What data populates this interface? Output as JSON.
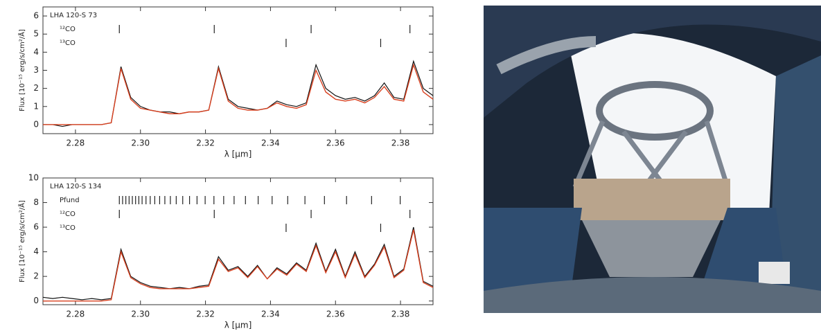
{
  "chart_data": [
    {
      "type": "line",
      "title": "LHA 120-S 73",
      "x_label": "λ [μm]",
      "y_label": "Flux [10⁻¹⁵ erg/s/cm²/Å]",
      "x": [
        2.27,
        2.273,
        2.276,
        2.279,
        2.282,
        2.285,
        2.288,
        2.291,
        2.294,
        2.297,
        2.3,
        2.303,
        2.306,
        2.309,
        2.312,
        2.315,
        2.318,
        2.321,
        2.324,
        2.327,
        2.33,
        2.333,
        2.336,
        2.339,
        2.342,
        2.345,
        2.348,
        2.351,
        2.354,
        2.357,
        2.36,
        2.363,
        2.366,
        2.369,
        2.372,
        2.375,
        2.378,
        2.381,
        2.384,
        2.387,
        2.39
      ],
      "series": [
        {
          "color": "#111111",
          "values": [
            0,
            0,
            -0.1,
            0,
            0,
            0,
            0,
            0.1,
            3.2,
            1.5,
            1.0,
            0.8,
            0.7,
            0.7,
            0.6,
            0.7,
            0.7,
            0.8,
            3.2,
            1.4,
            1.0,
            0.9,
            0.8,
            0.9,
            1.3,
            1.1,
            1.0,
            1.2,
            3.3,
            2.0,
            1.6,
            1.4,
            1.5,
            1.3,
            1.6,
            2.3,
            1.5,
            1.4,
            3.5,
            2.0,
            1.6
          ]
        },
        {
          "color": "#d8401f",
          "values": [
            0,
            0,
            0,
            0,
            0,
            0,
            0,
            0.1,
            3.1,
            1.4,
            0.9,
            0.8,
            0.7,
            0.6,
            0.6,
            0.7,
            0.7,
            0.8,
            3.1,
            1.3,
            0.9,
            0.8,
            0.8,
            0.9,
            1.2,
            1.0,
            0.9,
            1.1,
            3.0,
            1.8,
            1.4,
            1.3,
            1.4,
            1.2,
            1.5,
            2.1,
            1.4,
            1.3,
            3.3,
            1.8,
            1.4
          ]
        }
      ],
      "line_markers": [
        {
          "label": "¹²CO",
          "x": [
            2.2935,
            2.3227,
            2.3525,
            2.3829
          ]
        },
        {
          "label": "¹³CO",
          "x": [
            2.3448,
            2.3739
          ]
        }
      ],
      "xlim": [
        2.27,
        2.39
      ],
      "xticks": [
        2.28,
        {
          "value": 2.3,
          "label": "2.30"
        },
        2.32,
        2.34,
        2.36,
        2.38
      ],
      "ylim": [
        -0.5,
        6.5
      ],
      "yticks": [
        0,
        1,
        2,
        3,
        4,
        5,
        6
      ]
    },
    {
      "type": "line",
      "title": "LHA 120-S 134",
      "x_label": "λ [μm]",
      "y_label": "Flux [10⁻¹⁵ erg/s/cm²/Å]",
      "x": [
        2.27,
        2.273,
        2.276,
        2.279,
        2.282,
        2.285,
        2.288,
        2.291,
        2.294,
        2.297,
        2.3,
        2.303,
        2.306,
        2.309,
        2.312,
        2.315,
        2.318,
        2.321,
        2.324,
        2.327,
        2.33,
        2.333,
        2.336,
        2.339,
        2.342,
        2.345,
        2.348,
        2.351,
        2.354,
        2.357,
        2.36,
        2.363,
        2.366,
        2.369,
        2.372,
        2.375,
        2.378,
        2.381,
        2.384,
        2.387,
        2.39
      ],
      "series": [
        {
          "color": "#111111",
          "values": [
            0.3,
            0.2,
            0.3,
            0.2,
            0.1,
            0.2,
            0.1,
            0.2,
            4.2,
            2.0,
            1.5,
            1.2,
            1.1,
            1.0,
            1.1,
            1.0,
            1.2,
            1.3,
            3.6,
            2.5,
            2.8,
            2.0,
            2.9,
            1.8,
            2.7,
            2.2,
            3.1,
            2.5,
            4.7,
            2.4,
            4.2,
            2.0,
            4.0,
            2.0,
            3.0,
            4.6,
            2.0,
            2.6,
            6.0,
            1.6,
            1.2
          ]
        },
        {
          "color": "#d8401f",
          "values": [
            0,
            0,
            0,
            0,
            0,
            0,
            0,
            0.1,
            4.0,
            1.9,
            1.4,
            1.1,
            1.0,
            1.0,
            1.0,
            1.0,
            1.1,
            1.2,
            3.4,
            2.4,
            2.7,
            1.9,
            2.8,
            1.8,
            2.6,
            2.1,
            3.0,
            2.4,
            4.5,
            2.3,
            4.0,
            1.9,
            3.8,
            1.9,
            2.9,
            4.4,
            1.9,
            2.5,
            5.8,
            1.5,
            1.1
          ]
        }
      ],
      "line_markers": [
        {
          "label": "Pfund",
          "x": [
            2.2935,
            2.2945,
            2.2955,
            2.2965,
            2.2975,
            2.2985,
            2.2995,
            2.3005,
            2.3017,
            2.303,
            2.3044,
            2.3059,
            2.3075,
            2.3092,
            2.311,
            2.313,
            2.3151,
            2.3174,
            2.3199,
            2.3226,
            2.3256,
            2.3288,
            2.3323,
            2.3362,
            2.3405,
            2.3453,
            2.3506,
            2.3566,
            2.3634,
            2.3711,
            2.3799
          ]
        },
        {
          "label": "¹²CO",
          "x": [
            2.2935,
            2.3227,
            2.3525,
            2.3829
          ]
        },
        {
          "label": "¹³CO",
          "x": [
            2.3448,
            2.3739
          ]
        }
      ],
      "xlim": [
        2.27,
        2.39
      ],
      "xticks": [
        2.28,
        {
          "value": 2.3,
          "label": "2.30"
        },
        2.32,
        2.34,
        2.36,
        2.38
      ],
      "ylim": [
        -0.3,
        10
      ],
      "yticks": [
        0,
        2,
        4,
        6,
        8,
        10
      ]
    }
  ]
}
